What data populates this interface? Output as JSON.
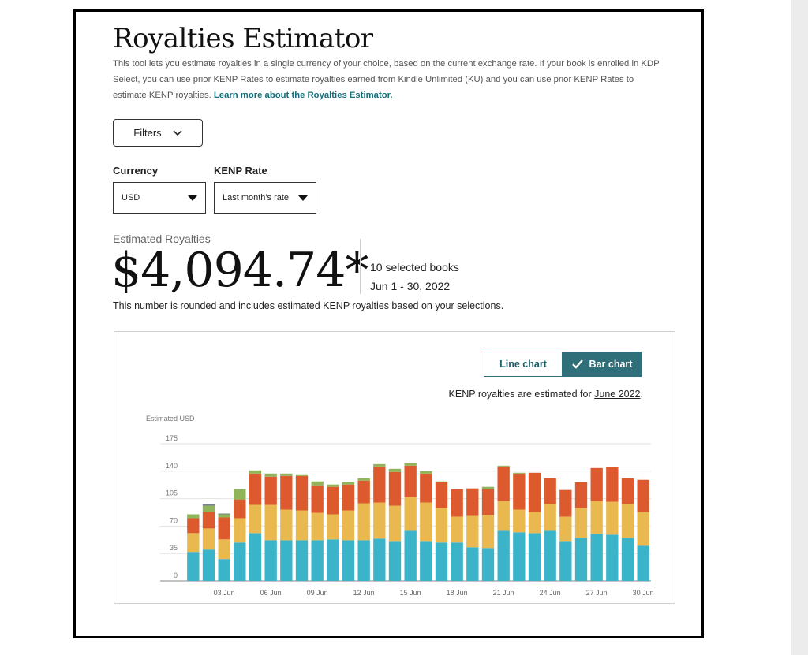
{
  "page": {
    "title": "Royalties Estimator",
    "intro_text": "This tool lets you estimate royalties in a single currency of your choice, based on the current exchange rate. If your book is enrolled in KDP Select, you can use prior KENP Rates to estimate royalties earned from Kindle Unlimited (KU) and you can use prior KENP Rates to estimate KENP royalties.",
    "learn_more_link": "Learn more about the Royalties Estimator."
  },
  "filters": {
    "button_label": "Filters",
    "icon": "chevron-down-icon"
  },
  "currency": {
    "label": "Currency",
    "value": "USD"
  },
  "kenp_rate": {
    "label": "KENP Rate",
    "value": "Last month's rate"
  },
  "estimate": {
    "label": "Estimated Royalties",
    "value": "$4,094.74*",
    "books": "10 selected books",
    "date_range": "Jun 1 - 30, 2022",
    "note": "This number is rounded and includes estimated KENP royalties based on your selections."
  },
  "chart_controls": {
    "line_chart_label": "Line chart",
    "bar_chart_label": "Bar chart",
    "selected": "Bar chart",
    "kenp_note_prefix": "KENP royalties are estimated for",
    "kenp_note_link": "June 2022",
    "kenp_note_suffix": "."
  },
  "colors": {
    "teal": "#3bb3c9",
    "yellow": "#e9b84f",
    "red": "#dc5a2e",
    "green": "#8fb45a",
    "gray": "#7a7f91",
    "accent": "#2e6f7a"
  },
  "chart_data": {
    "type": "bar",
    "stacked": true,
    "ylabel": "Estimated USD",
    "ylim": [
      0,
      175
    ],
    "yticks": [
      0,
      35,
      70,
      105,
      140,
      175
    ],
    "grid": true,
    "categories": [
      "01",
      "02",
      "03",
      "04",
      "05",
      "06",
      "07",
      "08",
      "09",
      "10",
      "11",
      "12",
      "13",
      "14",
      "15",
      "16",
      "17",
      "18",
      "19",
      "20",
      "21",
      "22",
      "23",
      "24",
      "25",
      "26",
      "27",
      "28",
      "29",
      "30"
    ],
    "xtick_labels": [
      "03 Jun",
      "06 Jun",
      "09 Jun",
      "12 Jun",
      "15 Jun",
      "18 Jun",
      "21 Jun",
      "24 Jun",
      "27 Jun",
      "30 Jun"
    ],
    "xtick_indices": [
      2,
      5,
      8,
      11,
      14,
      17,
      20,
      23,
      26,
      29
    ],
    "series": [
      {
        "values": [
          37,
          40,
          28,
          49,
          61,
          52,
          52,
          52,
          52,
          53,
          52,
          52,
          54,
          50,
          64,
          50,
          49,
          49,
          43,
          42,
          64,
          62,
          61,
          64,
          50,
          55,
          60,
          59,
          55,
          45
        ]
      },
      {
        "values": [
          24,
          27,
          25,
          31,
          36,
          45,
          39,
          38,
          35,
          32,
          38,
          47,
          46,
          46,
          43,
          50,
          44,
          33,
          40,
          42,
          38,
          29,
          27,
          34,
          32,
          38,
          42,
          42,
          43,
          43
        ]
      },
      {
        "values": [
          19,
          21,
          28,
          24,
          40,
          36,
          43,
          44,
          35,
          35,
          33,
          29,
          46,
          43,
          40,
          37,
          33,
          35,
          35,
          33,
          44,
          46,
          50,
          33,
          34,
          33,
          42,
          44,
          33,
          41
        ]
      },
      {
        "values": [
          5,
          8,
          4,
          13,
          4,
          4,
          3,
          2,
          5,
          3,
          3,
          3,
          3,
          4,
          3,
          3,
          1,
          0,
          0,
          3,
          1,
          1,
          0,
          0,
          0,
          0,
          0,
          0,
          0,
          0
        ]
      },
      {
        "values": [
          0,
          2,
          1,
          0,
          0,
          0,
          0,
          0,
          0,
          0,
          0,
          0,
          0,
          0,
          0,
          0,
          0,
          0,
          0,
          0,
          0,
          0,
          0,
          0,
          0,
          0,
          0,
          0,
          0,
          0
        ]
      }
    ]
  }
}
